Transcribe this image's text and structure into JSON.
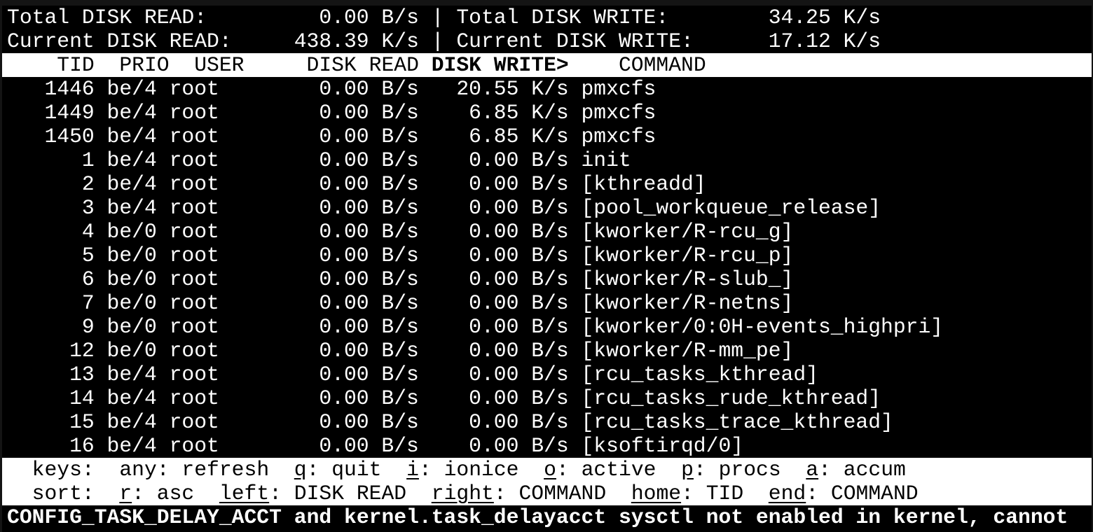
{
  "summary": {
    "total_read_label": "Total DISK READ:",
    "total_read": "0.00 B/s",
    "total_write_label": "Total DISK WRITE:",
    "total_write": "34.25 K/s",
    "current_read_label": "Current DISK READ:",
    "current_read": "438.39 K/s",
    "current_write_label": "Current DISK WRITE:",
    "current_write": "17.12 K/s",
    "separator": "|"
  },
  "columns": {
    "tid": "TID",
    "prio": "PRIO",
    "user": "USER",
    "read": "DISK READ",
    "write": "DISK WRITE>",
    "command": "COMMAND",
    "sorted_by": "DISK WRITE"
  },
  "rows": [
    {
      "tid": "1446",
      "prio": "be/4",
      "user": "root",
      "read": "0.00 B/s",
      "write": "20.55 K/s",
      "command": "pmxcfs"
    },
    {
      "tid": "1449",
      "prio": "be/4",
      "user": "root",
      "read": "0.00 B/s",
      "write": "6.85 K/s",
      "command": "pmxcfs"
    },
    {
      "tid": "1450",
      "prio": "be/4",
      "user": "root",
      "read": "0.00 B/s",
      "write": "6.85 K/s",
      "command": "pmxcfs"
    },
    {
      "tid": "1",
      "prio": "be/4",
      "user": "root",
      "read": "0.00 B/s",
      "write": "0.00 B/s",
      "command": "init"
    },
    {
      "tid": "2",
      "prio": "be/4",
      "user": "root",
      "read": "0.00 B/s",
      "write": "0.00 B/s",
      "command": "[kthreadd]"
    },
    {
      "tid": "3",
      "prio": "be/4",
      "user": "root",
      "read": "0.00 B/s",
      "write": "0.00 B/s",
      "command": "[pool_workqueue_release]"
    },
    {
      "tid": "4",
      "prio": "be/0",
      "user": "root",
      "read": "0.00 B/s",
      "write": "0.00 B/s",
      "command": "[kworker/R-rcu_g]"
    },
    {
      "tid": "5",
      "prio": "be/0",
      "user": "root",
      "read": "0.00 B/s",
      "write": "0.00 B/s",
      "command": "[kworker/R-rcu_p]"
    },
    {
      "tid": "6",
      "prio": "be/0",
      "user": "root",
      "read": "0.00 B/s",
      "write": "0.00 B/s",
      "command": "[kworker/R-slub_]"
    },
    {
      "tid": "7",
      "prio": "be/0",
      "user": "root",
      "read": "0.00 B/s",
      "write": "0.00 B/s",
      "command": "[kworker/R-netns]"
    },
    {
      "tid": "9",
      "prio": "be/0",
      "user": "root",
      "read": "0.00 B/s",
      "write": "0.00 B/s",
      "command": "[kworker/0:0H-events_highpri]"
    },
    {
      "tid": "12",
      "prio": "be/0",
      "user": "root",
      "read": "0.00 B/s",
      "write": "0.00 B/s",
      "command": "[kworker/R-mm_pe]"
    },
    {
      "tid": "13",
      "prio": "be/4",
      "user": "root",
      "read": "0.00 B/s",
      "write": "0.00 B/s",
      "command": "[rcu_tasks_kthread]"
    },
    {
      "tid": "14",
      "prio": "be/4",
      "user": "root",
      "read": "0.00 B/s",
      "write": "0.00 B/s",
      "command": "[rcu_tasks_rude_kthread]"
    },
    {
      "tid": "15",
      "prio": "be/4",
      "user": "root",
      "read": "0.00 B/s",
      "write": "0.00 B/s",
      "command": "[rcu_tasks_trace_kthread]"
    },
    {
      "tid": "16",
      "prio": "be/4",
      "user": "root",
      "read": "0.00 B/s",
      "write": "0.00 B/s",
      "command": "[ksoftirqd/0]"
    }
  ],
  "keys": {
    "label": "keys:",
    "items": [
      {
        "key": "any",
        "desc": "refresh"
      },
      {
        "key": "q",
        "desc": "quit"
      },
      {
        "key": "i",
        "desc": "ionice"
      },
      {
        "key": "o",
        "desc": "active"
      },
      {
        "key": "p",
        "desc": "procs"
      },
      {
        "key": "a",
        "desc": "accum"
      }
    ]
  },
  "sort": {
    "label": "sort:",
    "items": [
      {
        "key": "r",
        "desc": "asc"
      },
      {
        "key": "left",
        "desc": "DISK READ"
      },
      {
        "key": "right",
        "desc": "COMMAND"
      },
      {
        "key": "home",
        "desc": "TID"
      },
      {
        "key": "end",
        "desc": "COMMAND"
      }
    ]
  },
  "warning": "CONFIG_TASK_DELAY_ACCT and kernel.task_delayacct sysctl not enabled in kernel, cannot",
  "colors": {
    "background": "#000000",
    "foreground": "#ffffff",
    "frame": "#141414"
  }
}
